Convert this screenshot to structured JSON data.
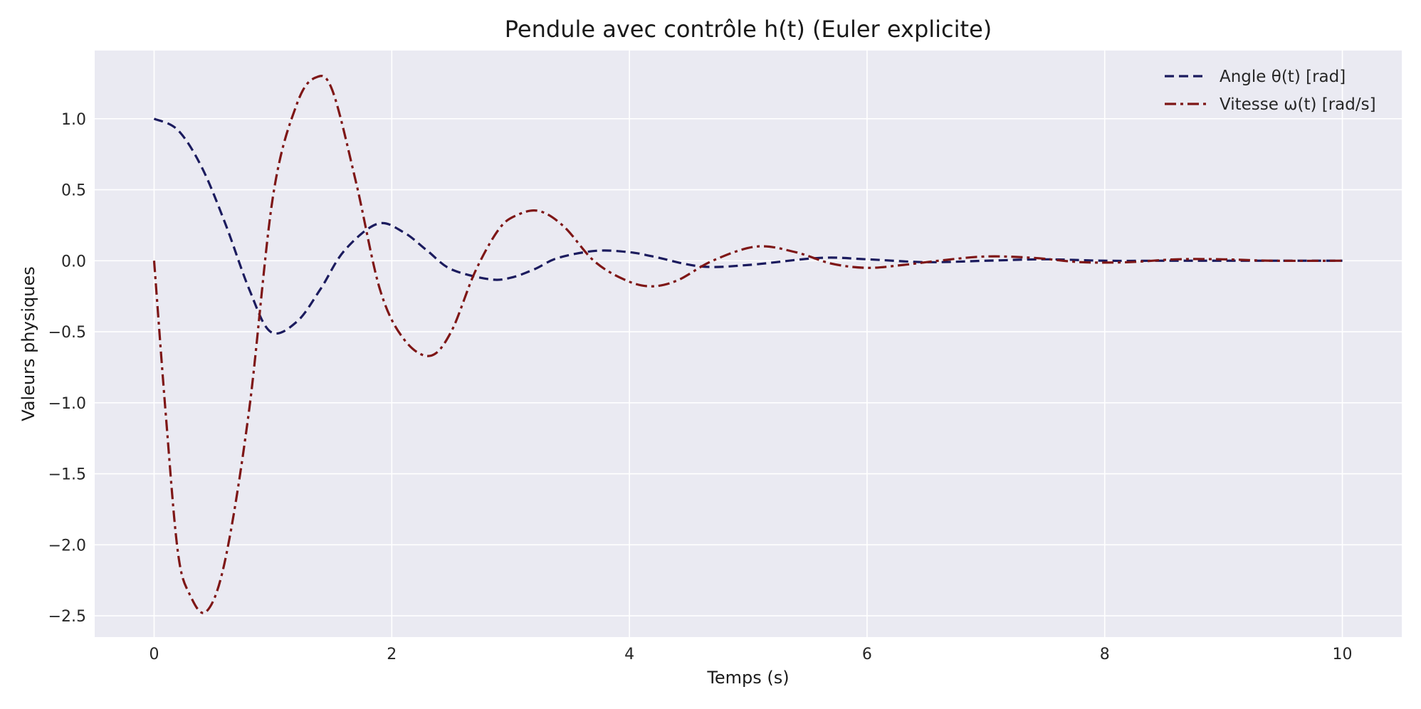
{
  "chart_data": {
    "type": "line",
    "title": "Pendule avec contrôle h(t) (Euler explicite)",
    "xlabel": "Temps (s)",
    "ylabel": "Valeurs physiques",
    "xlim": [
      -0.5,
      10.5
    ],
    "ylim": [
      -2.65,
      1.48
    ],
    "xticks": [
      0,
      2,
      4,
      6,
      8,
      10
    ],
    "xtick_labels": [
      "0",
      "2",
      "4",
      "6",
      "8",
      "10"
    ],
    "yticks": [
      1.0,
      0.5,
      0.0,
      -0.5,
      -1.0,
      -1.5,
      -2.0,
      -2.5
    ],
    "ytick_labels": [
      "1.0",
      "0.5",
      "0.0",
      "−0.5",
      "−1.0",
      "−1.5",
      "−2.0",
      "−2.5"
    ],
    "grid": true,
    "legend_position": "top-right",
    "background": "#eaeaf2",
    "series": [
      {
        "name": "Angle θ(t) [rad]",
        "color": "#1b1b5e",
        "style": "dashed",
        "x": [
          0.0,
          0.2,
          0.4,
          0.6,
          0.8,
          0.98,
          1.2,
          1.4,
          1.6,
          1.88,
          2.1,
          2.3,
          2.5,
          2.82,
          3.0,
          3.2,
          3.4,
          3.72,
          4.0,
          4.2,
          4.6,
          5.0,
          5.6,
          6.0,
          6.5,
          7.0,
          7.5,
          8.0,
          8.5,
          9.0,
          9.5,
          10.0
        ],
        "y": [
          1.0,
          0.92,
          0.66,
          0.26,
          -0.2,
          -0.5,
          -0.43,
          -0.2,
          0.07,
          0.26,
          0.2,
          0.07,
          -0.06,
          -0.13,
          -0.12,
          -0.06,
          0.02,
          0.07,
          0.06,
          0.03,
          -0.04,
          -0.03,
          0.02,
          0.01,
          -0.01,
          0.0,
          0.01,
          0.0,
          0.0,
          0.0,
          0.0,
          0.0
        ]
      },
      {
        "name": "Vitesse ω(t) [rad/s]",
        "color": "#7e1616",
        "style": "dashdot",
        "x": [
          0.0,
          0.1,
          0.2,
          0.3,
          0.44,
          0.6,
          0.8,
          1.0,
          1.2,
          1.36,
          1.5,
          1.7,
          1.9,
          2.1,
          2.32,
          2.5,
          2.7,
          2.9,
          3.05,
          3.24,
          3.45,
          3.7,
          3.95,
          4.17,
          4.4,
          4.7,
          5.07,
          5.4,
          5.7,
          6.0,
          6.3,
          6.6,
          7.0,
          7.4,
          7.8,
          8.2,
          8.6,
          9.0,
          9.4,
          10.0
        ],
        "y": [
          0.0,
          -1.1,
          -2.05,
          -2.35,
          -2.47,
          -2.1,
          -1.05,
          0.45,
          1.1,
          1.29,
          1.2,
          0.55,
          -0.2,
          -0.55,
          -0.67,
          -0.5,
          -0.08,
          0.22,
          0.32,
          0.35,
          0.24,
          0.0,
          -0.13,
          -0.18,
          -0.14,
          0.0,
          0.1,
          0.06,
          -0.02,
          -0.05,
          -0.03,
          0.0,
          0.03,
          0.02,
          -0.01,
          -0.01,
          0.01,
          0.01,
          0.0,
          0.0
        ]
      }
    ]
  }
}
